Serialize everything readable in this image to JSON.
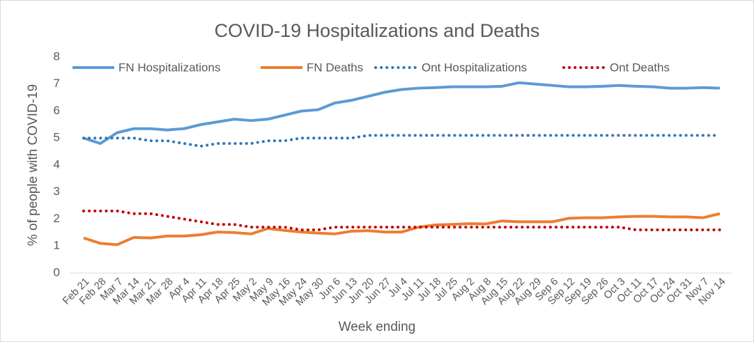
{
  "chart_data": {
    "type": "line",
    "title": "COVID-19 Hospitalizations and Deaths",
    "x_label": "Week ending",
    "y_label": "% of people with COVID-19",
    "categories": [
      "Feb 21",
      "Feb 28",
      "Mar 7",
      "Mar 14",
      "Mar 21",
      "Mar 28",
      "Apr 4",
      "Apr 11",
      "Apr 18",
      "Apr 25",
      "May 2",
      "May 9",
      "May 16",
      "May 24",
      "May 30",
      "Jun 6",
      "Jun 13",
      "Jun 20",
      "Jun 27",
      "Jul 4",
      "Jul 11",
      "Jul 18",
      "Jul 25",
      "Aug 2",
      "Aug 8",
      "Aug 15",
      "Aug 22",
      "Aug 29",
      "Sep 6",
      "Sep 12",
      "Sep 19",
      "Sep 26",
      "Oct 3",
      "Oct 11",
      "Oct 17",
      "Oct 24",
      "Oct 31",
      "Nov 7",
      "Nov 14"
    ],
    "series": [
      {
        "name": "FN Hospitalizations",
        "color": "#5b9bd5",
        "style": "solid",
        "values": [
          5.0,
          4.8,
          5.2,
          5.35,
          5.35,
          5.3,
          5.35,
          5.5,
          5.6,
          5.7,
          5.65,
          5.7,
          5.85,
          6.0,
          6.05,
          6.3,
          6.4,
          6.55,
          6.7,
          6.8,
          6.85,
          6.87,
          6.9,
          6.9,
          6.9,
          6.92,
          7.05,
          7.0,
          6.95,
          6.9,
          6.9,
          6.92,
          6.95,
          6.92,
          6.9,
          6.85,
          6.85,
          6.87,
          6.85
        ]
      },
      {
        "name": "FN Deaths",
        "color": "#ed7d31",
        "style": "solid",
        "values": [
          1.3,
          1.1,
          1.05,
          1.32,
          1.3,
          1.37,
          1.37,
          1.42,
          1.52,
          1.5,
          1.45,
          1.65,
          1.58,
          1.52,
          1.48,
          1.45,
          1.55,
          1.57,
          1.52,
          1.52,
          1.7,
          1.78,
          1.8,
          1.83,
          1.82,
          1.93,
          1.9,
          1.9,
          1.9,
          2.03,
          2.05,
          2.05,
          2.08,
          2.1,
          2.1,
          2.08,
          2.08,
          2.05,
          2.2
        ]
      },
      {
        "name": "Ont Hospitalizations",
        "color": "#2e75b6",
        "style": "dotted",
        "values": [
          5.0,
          5.0,
          5.0,
          5.0,
          4.9,
          4.9,
          4.8,
          4.7,
          4.8,
          4.8,
          4.8,
          4.9,
          4.9,
          5.0,
          5.0,
          5.0,
          5.0,
          5.1,
          5.1,
          5.1,
          5.1,
          5.1,
          5.1,
          5.1,
          5.1,
          5.1,
          5.1,
          5.1,
          5.1,
          5.1,
          5.1,
          5.1,
          5.1,
          5.1,
          5.1,
          5.1,
          5.1,
          5.1,
          5.1
        ]
      },
      {
        "name": "Ont Deaths",
        "color": "#c00000",
        "style": "dotted",
        "values": [
          2.3,
          2.3,
          2.3,
          2.2,
          2.2,
          2.1,
          2.0,
          1.9,
          1.8,
          1.8,
          1.7,
          1.7,
          1.7,
          1.6,
          1.6,
          1.7,
          1.7,
          1.7,
          1.7,
          1.7,
          1.7,
          1.7,
          1.7,
          1.7,
          1.7,
          1.7,
          1.7,
          1.7,
          1.7,
          1.7,
          1.7,
          1.7,
          1.7,
          1.6,
          1.6,
          1.6,
          1.6,
          1.6,
          1.6
        ]
      }
    ],
    "ylim": [
      0,
      8
    ],
    "yticks": [
      0,
      1,
      2,
      3,
      4,
      5,
      6,
      7,
      8
    ],
    "grid": false,
    "legend": "top"
  }
}
